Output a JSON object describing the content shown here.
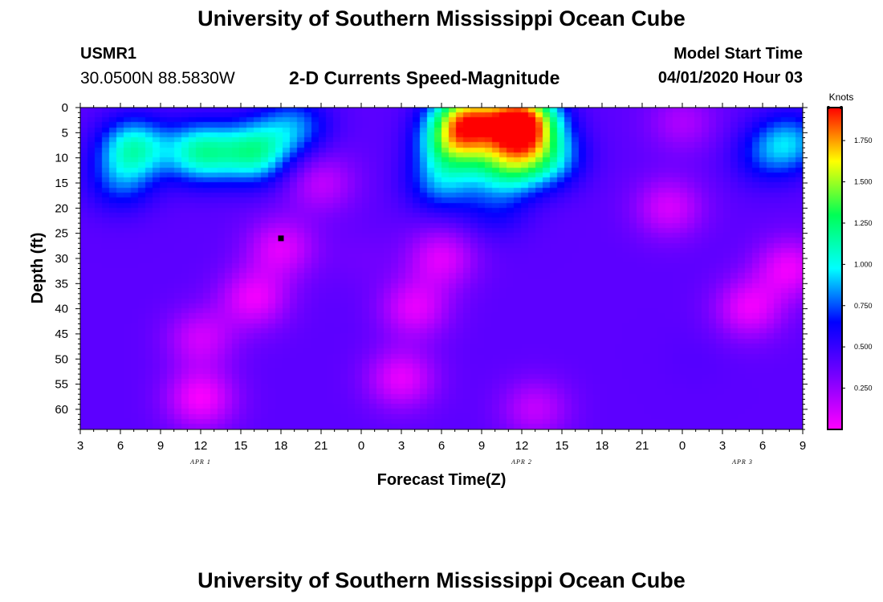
{
  "header": {
    "title": "University of Southern Mississippi Ocean Cube",
    "station_id": "USMR1",
    "station_coords": "30.0500N 88.5830W",
    "plot_title": "2-D Currents Speed-Magnitude",
    "model_start_label": "Model Start Time",
    "model_start_time": "04/01/2020 Hour 03"
  },
  "footer": {
    "title": "University of Southern Mississippi Ocean Cube"
  },
  "chart_data": {
    "type": "heatmap",
    "xlabel": "Forecast Time(Z)",
    "ylabel": "Depth (ft)",
    "x_ticks": [
      "3",
      "6",
      "9",
      "12",
      "15",
      "18",
      "21",
      "0",
      "3",
      "6",
      "9",
      "12",
      "15",
      "18",
      "21",
      "0",
      "3",
      "6",
      "9"
    ],
    "x_range_hours": [
      0,
      54
    ],
    "date_labels": [
      {
        "text": "APR 1",
        "hour": 9
      },
      {
        "text": "APR 2",
        "hour": 33
      },
      {
        "text": "APR 3",
        "hour": 49.5
      }
    ],
    "y_ticks": [
      "0",
      "5",
      "10",
      "15",
      "20",
      "25",
      "30",
      "35",
      "40",
      "45",
      "50",
      "55",
      "60"
    ],
    "y_range_ft": [
      0,
      64
    ],
    "colorbar": {
      "title": "Knots",
      "ticks": [
        "0.250",
        "0.500",
        "0.750",
        "1.000",
        "1.250",
        "1.500",
        "1.750"
      ],
      "range": [
        0,
        1.95
      ],
      "colors": [
        "#ff00ff",
        "#7700ff",
        "#0000ff",
        "#00ffff",
        "#00ff55",
        "#ffff00",
        "#ff0000"
      ]
    },
    "marker": {
      "hour": 15,
      "depth_ft": 26
    },
    "features": [
      {
        "hour": 9,
        "depth_ft": 9,
        "speed": 1.1
      },
      {
        "hour": 4,
        "depth_ft": 8,
        "speed": 1.05
      },
      {
        "hour": 13,
        "depth_ft": 9,
        "speed": 1.1
      },
      {
        "hour": 3,
        "depth_ft": 15,
        "speed": 0.7
      },
      {
        "hour": 16,
        "depth_ft": 4,
        "speed": 0.8
      },
      {
        "hour": 28,
        "depth_ft": 7,
        "speed": 1.2
      },
      {
        "hour": 29,
        "depth_ft": 2,
        "speed": 1.4
      },
      {
        "hour": 27,
        "depth_ft": 15,
        "speed": 0.8
      },
      {
        "hour": 33,
        "depth_ft": 3,
        "speed": 1.95
      },
      {
        "hour": 32,
        "depth_ft": 11,
        "speed": 1.15
      },
      {
        "hour": 35,
        "depth_ft": 10,
        "speed": 0.9
      },
      {
        "hour": 31,
        "depth_ft": 20,
        "speed": 0.6
      },
      {
        "hour": 53,
        "depth_ft": 7,
        "speed": 0.85
      },
      {
        "hour": 51,
        "depth_ft": 10,
        "speed": 0.6
      },
      {
        "hour": 21,
        "depth_ft": 30,
        "speed": 0.35
      },
      {
        "hour": 46,
        "depth_ft": 50,
        "speed": 0.42
      },
      {
        "hour": 38,
        "depth_ft": 55,
        "speed": 0.4
      }
    ],
    "weak_bands": [
      {
        "hour": 9,
        "depth_ft": 58,
        "speed": 0.02
      },
      {
        "hour": 9,
        "depth_ft": 46,
        "speed": 0.12
      },
      {
        "hour": 13,
        "depth_ft": 38,
        "speed": 0.05
      },
      {
        "hour": 15,
        "depth_ft": 28,
        "speed": 0.08
      },
      {
        "hour": 18,
        "depth_ft": 15,
        "speed": 0.15
      },
      {
        "hour": 24,
        "depth_ft": 54,
        "speed": 0.06
      },
      {
        "hour": 25,
        "depth_ft": 40,
        "speed": 0.07
      },
      {
        "hour": 27,
        "depth_ft": 30,
        "speed": 0.08
      },
      {
        "hour": 44,
        "depth_ft": 20,
        "speed": 0.1
      },
      {
        "hour": 45,
        "depth_ft": 3,
        "speed": 0.2
      },
      {
        "hour": 50,
        "depth_ft": 40,
        "speed": 0.05
      },
      {
        "hour": 53,
        "depth_ft": 32,
        "speed": 0.05
      },
      {
        "hour": 34,
        "depth_ft": 60,
        "speed": 0.15
      }
    ]
  }
}
